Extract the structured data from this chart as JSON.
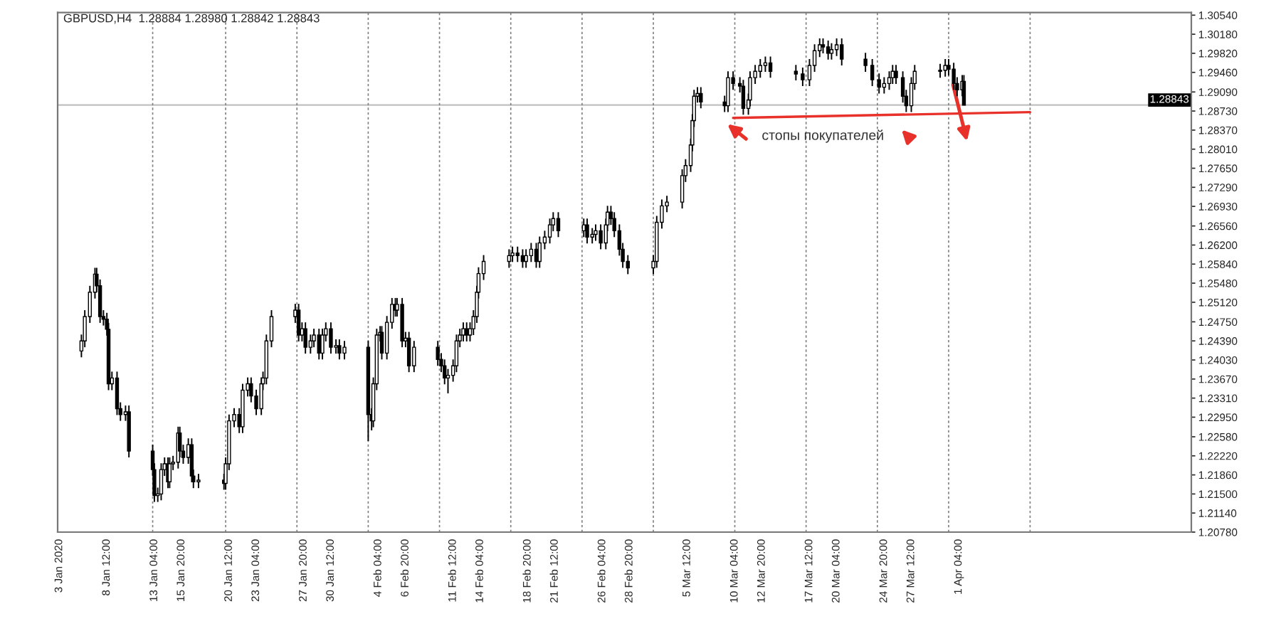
{
  "chart_data": {
    "type": "candlestick",
    "title": "GBPUSD,H4  1.28884 1.28980 1.28842 1.28843",
    "x": [
      "2020-01-06T00:00",
      "2020-01-06T08:00",
      "2020-01-06T20:00",
      "2020-01-07T08:00",
      "2020-01-07T12:00",
      "2020-01-07T20:00",
      "2020-01-08T04:00",
      "2020-01-08T12:00",
      "2020-01-08T16:00",
      "2020-01-09T00:00",
      "2020-01-09T12:00",
      "2020-01-09T20:00",
      "2020-01-10T08:00",
      "2020-01-10T16:00",
      "2020-01-13T00:00",
      "2020-01-13T04:00",
      "2020-01-13T12:00",
      "2020-01-13T20:00",
      "2020-01-14T04:00",
      "2020-01-14T12:00",
      "2020-01-14T16:00",
      "2020-01-15T00:00",
      "2020-01-15T12:00",
      "2020-01-15T16:00",
      "2020-01-16T00:00",
      "2020-01-16T12:00",
      "2020-01-16T20:00",
      "2020-01-17T00:00",
      "2020-01-17T12:00",
      "2020-01-20T00:00",
      "2020-01-20T04:00",
      "2020-01-20T12:00",
      "2020-01-21T00:00",
      "2020-01-21T12:00",
      "2020-01-21T20:00",
      "2020-01-22T08:00",
      "2020-01-22T16:00",
      "2020-01-23T04:00",
      "2020-01-23T16:00",
      "2020-01-23T20:00",
      "2020-01-24T04:00",
      "2020-01-24T16:00",
      "2020-01-27T00:00",
      "2020-01-27T08:00",
      "2020-01-27T16:00",
      "2020-01-28T00:00",
      "2020-01-28T12:00",
      "2020-01-28T20:00",
      "2020-01-29T08:00",
      "2020-01-29T16:00",
      "2020-01-30T00:00",
      "2020-01-30T12:00",
      "2020-01-31T00:00",
      "2020-01-31T08:00",
      "2020-01-31T20:00",
      "2020-02-03T04:00",
      "2020-02-03T12:00",
      "2020-02-03T16:00",
      "2020-02-04T00:00",
      "2020-02-04T08:00",
      "2020-02-04T12:00",
      "2020-02-05T00:00",
      "2020-02-05T12:00",
      "2020-02-05T20:00",
      "2020-02-06T00:00",
      "2020-02-06T12:00",
      "2020-02-06T20:00",
      "2020-02-07T04:00",
      "2020-02-07T16:00",
      "2020-02-10T00:00",
      "2020-02-10T08:00",
      "2020-02-10T16:00",
      "2020-02-11T00:00",
      "2020-02-11T12:00",
      "2020-02-11T20:00",
      "2020-02-12T04:00",
      "2020-02-12T12:00",
      "2020-02-12T20:00",
      "2020-02-13T04:00",
      "2020-02-13T12:00",
      "2020-02-13T20:00",
      "2020-02-14T00:00",
      "2020-02-14T12:00",
      "2020-02-17T00:00",
      "2020-02-17T08:00",
      "2020-02-17T20:00",
      "2020-02-18T08:00",
      "2020-02-18T16:00",
      "2020-02-19T04:00",
      "2020-02-19T16:00",
      "2020-02-20T00:00",
      "2020-02-20T12:00",
      "2020-02-21T00:00",
      "2020-02-21T08:00",
      "2020-02-21T20:00",
      "2020-02-24T08:00",
      "2020-02-24T16:00",
      "2020-02-25T04:00",
      "2020-02-25T12:00",
      "2020-02-26T00:00",
      "2020-02-26T12:00",
      "2020-02-26T16:00",
      "2020-02-27T00:00",
      "2020-02-27T08:00",
      "2020-02-27T20:00",
      "2020-02-28T04:00",
      "2020-02-28T16:00",
      "2020-03-02T04:00",
      "2020-03-02T12:00",
      "2020-03-03T00:00",
      "2020-03-03T12:00",
      "2020-03-05T00:00",
      "2020-03-05T08:00",
      "2020-03-05T20:00",
      "2020-03-06T00:00",
      "2020-03-06T04:00",
      "2020-03-06T12:00",
      "2020-03-06T20:00",
      "2020-03-09T04:00",
      "2020-03-09T12:00",
      "2020-03-10T00:00",
      "2020-03-10T16:00",
      "2020-03-11T00:00",
      "2020-03-11T12:00",
      "2020-03-11T16:00",
      "2020-03-12T04:00",
      "2020-03-12T16:00",
      "2020-03-13T04:00",
      "2020-03-13T16:00",
      "2020-03-16T04:00",
      "2020-03-16T20:00",
      "2020-03-17T12:00",
      "2020-03-18T00:00",
      "2020-03-18T12:00",
      "2020-03-18T20:00",
      "2020-03-19T08:00",
      "2020-03-19T16:00",
      "2020-03-20T04:00",
      "2020-03-20T16:00",
      "2020-03-23T00:00",
      "2020-03-23T16:00",
      "2020-03-24T08:00",
      "2020-03-24T20:00",
      "2020-03-25T08:00",
      "2020-03-25T16:00",
      "2020-03-26T00:00",
      "2020-03-26T16:00",
      "2020-03-27T00:00",
      "2020-03-27T12:00",
      "2020-03-27T20:00",
      "2020-03-30T08:00",
      "2020-03-30T20:00",
      "2020-03-31T04:00",
      "2020-03-31T16:00",
      "2020-04-01T00:00",
      "2020-04-01T12:00",
      "2020-04-01T16:00"
    ],
    "series": [
      {
        "color": "#000000",
        "ohlc": [
          [
            1.242,
            1.2451,
            1.2408,
            1.2439
          ],
          [
            1.2439,
            1.2497,
            1.2427,
            1.2485
          ],
          [
            1.2485,
            1.2543,
            1.2473,
            1.2531
          ],
          [
            1.2531,
            1.2577,
            1.2519,
            1.2565
          ],
          [
            1.2565,
            1.2577,
            1.2531,
            1.2543
          ],
          [
            1.2543,
            1.2555,
            1.2473,
            1.2485
          ],
          [
            1.2485,
            1.2497,
            1.2468,
            1.248
          ],
          [
            1.248,
            1.2492,
            1.2449,
            1.2461
          ],
          [
            1.2461,
            1.2473,
            1.2346,
            1.2358
          ],
          [
            1.2358,
            1.2381,
            1.2346,
            1.2369
          ],
          [
            1.2369,
            1.2381,
            1.2299,
            1.2311
          ],
          [
            1.2311,
            1.2323,
            1.2288,
            1.23
          ],
          [
            1.23,
            1.2317,
            1.2288,
            1.2305
          ],
          [
            1.2305,
            1.2317,
            1.2219,
            1.2231
          ],
          [
            1.2231,
            1.2243,
            1.2184,
            1.2196
          ],
          [
            1.2196,
            1.2208,
            1.2135,
            1.2147
          ],
          [
            1.2147,
            1.2162,
            1.2135,
            1.215
          ],
          [
            1.215,
            1.2208,
            1.2138,
            1.2196
          ],
          [
            1.2196,
            1.2219,
            1.2184,
            1.2207
          ],
          [
            1.2207,
            1.2219,
            1.2161,
            1.2173
          ],
          [
            1.2173,
            1.2219,
            1.2161,
            1.2207
          ],
          [
            1.2207,
            1.2222,
            1.2195,
            1.221
          ],
          [
            1.221,
            1.2277,
            1.2198,
            1.2265
          ],
          [
            1.2265,
            1.2277,
            1.2219,
            1.2231
          ],
          [
            1.2231,
            1.2243,
            1.2207,
            1.2219
          ],
          [
            1.2219,
            1.2255,
            1.2207,
            1.2243
          ],
          [
            1.2243,
            1.2255,
            1.2172,
            1.2184
          ],
          [
            1.2184,
            1.2196,
            1.2161,
            1.2173
          ],
          [
            1.2173,
            1.2188,
            1.2161,
            1.2176
          ],
          [
            1.2176,
            1.2188,
            1.2158,
            1.217
          ],
          [
            1.217,
            1.2219,
            1.2158,
            1.2207
          ],
          [
            1.2207,
            1.23,
            1.2195,
            1.2288
          ],
          [
            1.2288,
            1.2312,
            1.2276,
            1.23
          ],
          [
            1.23,
            1.2312,
            1.2265,
            1.2277
          ],
          [
            1.2277,
            1.2358,
            1.2265,
            1.2346
          ],
          [
            1.2346,
            1.237,
            1.2334,
            1.2358
          ],
          [
            1.2358,
            1.237,
            1.2323,
            1.2335
          ],
          [
            1.2335,
            1.2347,
            1.2299,
            1.2311
          ],
          [
            1.2311,
            1.237,
            1.2299,
            1.2358
          ],
          [
            1.2358,
            1.2381,
            1.2346,
            1.2369
          ],
          [
            1.2369,
            1.2451,
            1.2357,
            1.2439
          ],
          [
            1.2439,
            1.2497,
            1.2427,
            1.2485
          ],
          [
            1.2485,
            1.2509,
            1.2473,
            1.2497
          ],
          [
            1.2497,
            1.2509,
            1.2438,
            1.245
          ],
          [
            1.245,
            1.2474,
            1.2438,
            1.2462
          ],
          [
            1.2462,
            1.2474,
            1.2415,
            1.2427
          ],
          [
            1.2427,
            1.2451,
            1.2415,
            1.2439
          ],
          [
            1.2439,
            1.2462,
            1.2427,
            1.245
          ],
          [
            1.245,
            1.2462,
            1.2404,
            1.2416
          ],
          [
            1.2416,
            1.2462,
            1.2404,
            1.245
          ],
          [
            1.245,
            1.2474,
            1.2438,
            1.2462
          ],
          [
            1.2462,
            1.2474,
            1.2415,
            1.2427
          ],
          [
            1.2427,
            1.2442,
            1.2415,
            1.243
          ],
          [
            1.243,
            1.2442,
            1.2404,
            1.2416
          ],
          [
            1.2416,
            1.2439,
            1.2404,
            1.2427
          ],
          [
            1.2427,
            1.2439,
            1.225,
            1.23
          ],
          [
            1.23,
            1.2312,
            1.227,
            1.2288
          ],
          [
            1.2288,
            1.237,
            1.2276,
            1.2358
          ],
          [
            1.2358,
            1.2462,
            1.2346,
            1.245
          ],
          [
            1.245,
            1.2467,
            1.2438,
            1.2455
          ],
          [
            1.2455,
            1.2467,
            1.2404,
            1.2416
          ],
          [
            1.2416,
            1.2486,
            1.2404,
            1.2474
          ],
          [
            1.2474,
            1.252,
            1.2462,
            1.2508
          ],
          [
            1.2508,
            1.252,
            1.2485,
            1.2497
          ],
          [
            1.2497,
            1.252,
            1.2485,
            1.2508
          ],
          [
            1.2508,
            1.252,
            1.2427,
            1.2439
          ],
          [
            1.2439,
            1.2456,
            1.2427,
            1.2444
          ],
          [
            1.2444,
            1.2456,
            1.238,
            1.2392
          ],
          [
            1.2392,
            1.2439,
            1.238,
            1.2427
          ],
          [
            1.2427,
            1.2439,
            1.2392,
            1.2404
          ],
          [
            1.2404,
            1.2416,
            1.238,
            1.2392
          ],
          [
            1.2392,
            1.2404,
            1.2357,
            1.2369
          ],
          [
            1.2369,
            1.2386,
            1.234,
            1.2374
          ],
          [
            1.2374,
            1.2404,
            1.2362,
            1.2392
          ],
          [
            1.2392,
            1.2451,
            1.238,
            1.2439
          ],
          [
            1.2439,
            1.2462,
            1.2427,
            1.245
          ],
          [
            1.245,
            1.2474,
            1.2438,
            1.2462
          ],
          [
            1.2462,
            1.2474,
            1.2438,
            1.245
          ],
          [
            1.245,
            1.2474,
            1.2438,
            1.2462
          ],
          [
            1.2462,
            1.2497,
            1.245,
            1.2485
          ],
          [
            1.2485,
            1.2543,
            1.2473,
            1.2531
          ],
          [
            1.2531,
            1.2578,
            1.2519,
            1.2566
          ],
          [
            1.2566,
            1.2601,
            1.2554,
            1.2589
          ],
          [
            1.2589,
            1.2612,
            1.2577,
            1.26
          ],
          [
            1.26,
            1.2617,
            1.2588,
            1.2605
          ],
          [
            1.2605,
            1.2617,
            1.2588,
            1.26
          ],
          [
            1.26,
            1.2612,
            1.2577,
            1.2589
          ],
          [
            1.2589,
            1.2612,
            1.2577,
            1.26
          ],
          [
            1.26,
            1.2624,
            1.2588,
            1.2612
          ],
          [
            1.2612,
            1.2624,
            1.2577,
            1.2589
          ],
          [
            1.2589,
            1.2636,
            1.2577,
            1.2624
          ],
          [
            1.2624,
            1.2647,
            1.2612,
            1.2635
          ],
          [
            1.2635,
            1.267,
            1.2623,
            1.2658
          ],
          [
            1.2658,
            1.2682,
            1.2646,
            1.267
          ],
          [
            1.267,
            1.2682,
            1.2635,
            1.2647
          ],
          [
            1.2647,
            1.267,
            1.2635,
            1.2658
          ],
          [
            1.2658,
            1.267,
            1.2623,
            1.2635
          ],
          [
            1.2635,
            1.2652,
            1.2623,
            1.264
          ],
          [
            1.264,
            1.2659,
            1.2628,
            1.2647
          ],
          [
            1.2647,
            1.2659,
            1.2612,
            1.2624
          ],
          [
            1.2624,
            1.267,
            1.2612,
            1.2658
          ],
          [
            1.2658,
            1.2694,
            1.2646,
            1.2682
          ],
          [
            1.2682,
            1.2694,
            1.2658,
            1.267
          ],
          [
            1.267,
            1.2682,
            1.2635,
            1.2647
          ],
          [
            1.2647,
            1.2659,
            1.26,
            1.2612
          ],
          [
            1.2612,
            1.2624,
            1.2577,
            1.2589
          ],
          [
            1.2589,
            1.2601,
            1.2565,
            1.2577
          ],
          [
            1.2577,
            1.2601,
            1.2565,
            1.2589
          ],
          [
            1.2589,
            1.2675,
            1.2577,
            1.2663
          ],
          [
            1.2663,
            1.2706,
            1.2651,
            1.2694
          ],
          [
            1.2694,
            1.2713,
            1.2682,
            1.2701
          ],
          [
            1.2701,
            1.2763,
            1.2689,
            1.2751
          ],
          [
            1.2751,
            1.2782,
            1.2739,
            1.277
          ],
          [
            1.277,
            1.2821,
            1.2758,
            1.2809
          ],
          [
            1.2809,
            1.2867,
            1.2797,
            1.2855
          ],
          [
            1.2855,
            1.2913,
            1.2843,
            1.2901
          ],
          [
            1.2901,
            1.2918,
            1.2889,
            1.2906
          ],
          [
            1.2906,
            1.2918,
            1.2878,
            1.289
          ],
          [
            1.289,
            1.2902,
            1.2871,
            1.2883
          ],
          [
            1.2883,
            1.2948,
            1.2871,
            1.2936
          ],
          [
            1.2936,
            1.2948,
            1.2913,
            1.2925
          ],
          [
            1.2925,
            1.2937,
            1.2908,
            1.292
          ],
          [
            1.292,
            1.2932,
            1.2866,
            1.2878
          ],
          [
            1.2878,
            1.2906,
            1.2866,
            1.2894
          ],
          [
            1.2894,
            1.2948,
            1.2882,
            1.2936
          ],
          [
            1.2936,
            1.296,
            1.2924,
            1.2948
          ],
          [
            1.2948,
            1.2971,
            1.2936,
            1.2959
          ],
          [
            1.2959,
            1.2976,
            1.2947,
            1.2964
          ],
          [
            1.2964,
            1.2976,
            1.2936,
            1.2948
          ],
          [
            1.2948,
            1.296,
            1.2931,
            1.2943
          ],
          [
            1.2943,
            1.2955,
            1.292,
            1.2932
          ],
          [
            1.2932,
            1.2971,
            1.292,
            1.2959
          ],
          [
            1.2959,
            1.2999,
            1.2947,
            1.2987
          ],
          [
            1.2987,
            1.301,
            1.2975,
            1.2998
          ],
          [
            1.2998,
            1.301,
            1.2982,
            1.2994
          ],
          [
            1.2994,
            1.3006,
            1.297,
            1.2982
          ],
          [
            1.2982,
            1.3001,
            1.297,
            1.2989
          ],
          [
            1.2989,
            1.301,
            1.2977,
            1.2998
          ],
          [
            1.2998,
            1.301,
            1.2959,
            1.2971
          ],
          [
            1.2971,
            1.2983,
            1.2947,
            1.2959
          ],
          [
            1.2959,
            1.2971,
            1.292,
            1.2932
          ],
          [
            1.2932,
            1.2944,
            1.2906,
            1.2918
          ],
          [
            1.2918,
            1.2937,
            1.2906,
            1.2925
          ],
          [
            1.2925,
            1.2948,
            1.2913,
            1.2936
          ],
          [
            1.2936,
            1.296,
            1.2924,
            1.2948
          ],
          [
            1.2948,
            1.296,
            1.2924,
            1.2936
          ],
          [
            1.2936,
            1.2948,
            1.2889,
            1.2901
          ],
          [
            1.2901,
            1.2913,
            1.2871,
            1.2883
          ],
          [
            1.2883,
            1.2937,
            1.2871,
            1.2925
          ],
          [
            1.2925,
            1.296,
            1.2913,
            1.2948
          ],
          [
            1.2948,
            1.2962,
            1.2936,
            1.295
          ],
          [
            1.295,
            1.2971,
            1.2938,
            1.2959
          ],
          [
            1.2959,
            1.2971,
            1.294,
            1.2952
          ],
          [
            1.2952,
            1.2964,
            1.2913,
            1.2925
          ],
          [
            1.2925,
            1.2937,
            1.2901,
            1.2913
          ],
          [
            1.2913,
            1.2941,
            1.2901,
            1.2929
          ],
          [
            1.2929,
            1.2941,
            1.2884,
            1.2884
          ]
        ]
      },
      {
        "type": "line",
        "color": "#e8312a",
        "x": [
          "2020-03-10T00:00",
          "2020-04-08T04:00"
        ],
        "values": [
          1.286,
          1.2871
        ]
      }
    ],
    "xlim": [
      "2020-01-03T16:00",
      "2020-04-24T00:00"
    ],
    "xticks": [
      {
        "value": "2020-01-03T20:00",
        "label": "3 Jan 2020"
      },
      {
        "value": "2020-01-08T12:00",
        "label": "8 Jan 12:00"
      },
      {
        "value": "2020-01-13T04:00",
        "label": "13 Jan 04:00"
      },
      {
        "value": "2020-01-15T20:00",
        "label": "15 Jan 20:00"
      },
      {
        "value": "2020-01-20T12:00",
        "label": "20 Jan 12:00"
      },
      {
        "value": "2020-01-23T04:00",
        "label": "23 Jan 04:00"
      },
      {
        "value": "2020-01-27T20:00",
        "label": "27 Jan 20:00"
      },
      {
        "value": "2020-01-30T12:00",
        "label": "30 Jan 12:00"
      },
      {
        "value": "2020-02-04T04:00",
        "label": "4 Feb 04:00"
      },
      {
        "value": "2020-02-06T20:00",
        "label": "6 Feb 20:00"
      },
      {
        "value": "2020-02-11T12:00",
        "label": "11 Feb 12:00"
      },
      {
        "value": "2020-02-14T04:00",
        "label": "14 Feb 04:00"
      },
      {
        "value": "2020-02-18T20:00",
        "label": "18 Feb 20:00"
      },
      {
        "value": "2020-02-21T12:00",
        "label": "21 Feb 12:00"
      },
      {
        "value": "2020-02-26T04:00",
        "label": "26 Feb 04:00"
      },
      {
        "value": "2020-02-28T20:00",
        "label": "28 Feb 20:00"
      },
      {
        "value": "2020-03-05T12:00",
        "label": "5 Mar 12:00"
      },
      {
        "value": "2020-03-10T04:00",
        "label": "10 Mar 04:00"
      },
      {
        "value": "2020-03-12T20:00",
        "label": "12 Mar 20:00"
      },
      {
        "value": "2020-03-17T12:00",
        "label": "17 Mar 12:00"
      },
      {
        "value": "2020-03-20T04:00",
        "label": "20 Mar 04:00"
      },
      {
        "value": "2020-03-24T20:00",
        "label": "24 Mar 20:00"
      },
      {
        "value": "2020-03-27T12:00",
        "label": "27 Mar 12:00"
      },
      {
        "value": "2020-04-01T04:00",
        "label": "1 Apr 04:00"
      }
    ],
    "ylim": [
      1.2078,
      1.3059
    ],
    "yticks": [
      {
        "value": 1.2078,
        "label": "1.20780"
      },
      {
        "value": 1.2114,
        "label": "1.21140"
      },
      {
        "value": 1.215,
        "label": "1.21500"
      },
      {
        "value": 1.2186,
        "label": "1.21860"
      },
      {
        "value": 1.2222,
        "label": "1.22220"
      },
      {
        "value": 1.2258,
        "label": "1.22580"
      },
      {
        "value": 1.2295,
        "label": "1.22950"
      },
      {
        "value": 1.2331,
        "label": "1.23310"
      },
      {
        "value": 1.2367,
        "label": "1.23670"
      },
      {
        "value": 1.2403,
        "label": "1.24030"
      },
      {
        "value": 1.2439,
        "label": "1.24390"
      },
      {
        "value": 1.2475,
        "label": "1.24750"
      },
      {
        "value": 1.2512,
        "label": "1.25120"
      },
      {
        "value": 1.2548,
        "label": "1.25480"
      },
      {
        "value": 1.2584,
        "label": "1.25840"
      },
      {
        "value": 1.262,
        "label": "1.26200"
      },
      {
        "value": 1.2656,
        "label": "1.26560"
      },
      {
        "value": 1.2693,
        "label": "1.26930"
      },
      {
        "value": 1.2729,
        "label": "1.27290"
      },
      {
        "value": 1.2765,
        "label": "1.27650"
      },
      {
        "value": 1.2801,
        "label": "1.28010"
      },
      {
        "value": 1.2837,
        "label": "1.28370"
      },
      {
        "value": 1.2873,
        "label": "1.28730"
      },
      {
        "value": 1.2909,
        "label": "1.29090"
      },
      {
        "value": 1.2946,
        "label": "1.29460"
      },
      {
        "value": 1.2982,
        "label": "1.29820"
      },
      {
        "value": 1.3018,
        "label": "1.30180"
      },
      {
        "value": 1.3054,
        "label": "1.30540"
      }
    ],
    "ref_lines": [
      {
        "axis": "y",
        "value": 1.28843,
        "label": "1.28843",
        "color": "#c0c0c0",
        "line_style": "solid"
      },
      {
        "axis": "x",
        "value": "2020-01-13T00:00",
        "color": "#808080",
        "line_style": "dashed"
      },
      {
        "axis": "x",
        "value": "2020-01-20T04:00",
        "color": "#808080",
        "line_style": "dashed"
      },
      {
        "axis": "x",
        "value": "2020-01-27T04:00",
        "color": "#808080",
        "line_style": "dashed"
      },
      {
        "axis": "x",
        "value": "2020-02-03T04:00",
        "color": "#808080",
        "line_style": "dashed"
      },
      {
        "axis": "x",
        "value": "2020-02-10T04:00",
        "color": "#808080",
        "line_style": "dashed"
      },
      {
        "axis": "x",
        "value": "2020-02-17T04:00",
        "color": "#808080",
        "line_style": "dashed"
      },
      {
        "axis": "x",
        "value": "2020-02-24T04:00",
        "color": "#808080",
        "line_style": "dashed"
      },
      {
        "axis": "x",
        "value": "2020-03-02T04:00",
        "color": "#808080",
        "line_style": "dashed"
      },
      {
        "axis": "x",
        "value": "2020-03-10T04:00",
        "color": "#808080",
        "line_style": "dashed"
      },
      {
        "axis": "x",
        "value": "2020-03-17T04:00",
        "color": "#808080",
        "line_style": "dashed"
      },
      {
        "axis": "x",
        "value": "2020-03-24T04:00",
        "color": "#808080",
        "line_style": "dashed"
      },
      {
        "axis": "x",
        "value": "2020-03-31T04:00",
        "color": "#808080",
        "line_style": "dashed"
      },
      {
        "axis": "x",
        "value": "2020-04-08T04:00",
        "color": "#808080",
        "line_style": "dashed"
      }
    ],
    "annotations": [
      "стопы покупателей"
    ]
  }
}
